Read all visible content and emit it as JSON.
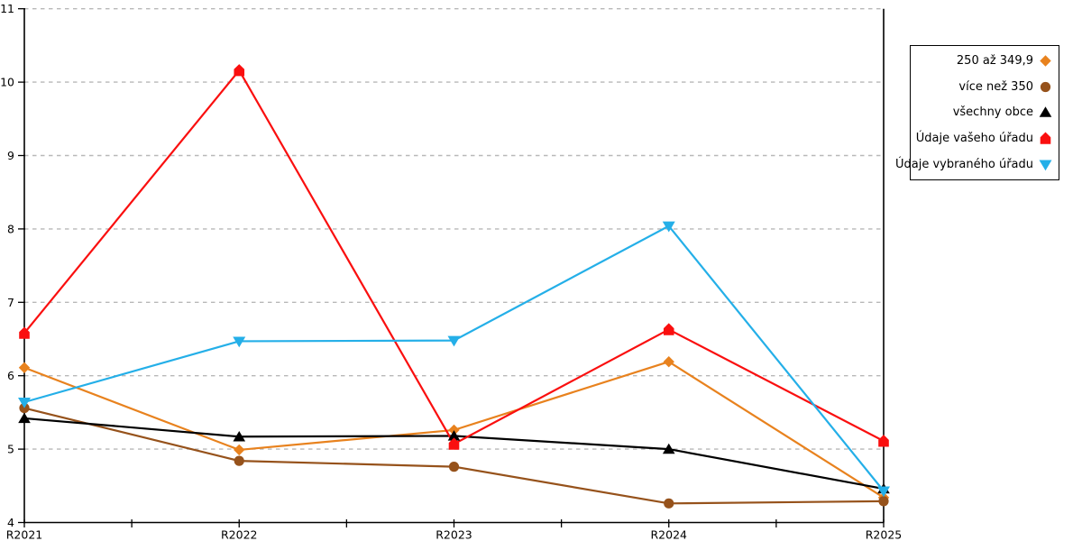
{
  "chart_data": {
    "type": "line",
    "title": "",
    "xlabel": "",
    "ylabel": "",
    "categories": [
      "R2021",
      "R2022",
      "R2023",
      "R2024",
      "R2025"
    ],
    "yticks": [
      4,
      5,
      6,
      7,
      8,
      9,
      10,
      11
    ],
    "ylim": [
      4,
      11
    ],
    "grid": "horizontal-dashed",
    "legend_position": "right-outside",
    "series": [
      {
        "name": "250 až 349,9",
        "color": "#E8821E",
        "marker": "diamond",
        "values": [
          6.11,
          4.99,
          5.26,
          6.19,
          4.34
        ]
      },
      {
        "name": "více než 350",
        "color": "#96521B",
        "marker": "circle",
        "values": [
          5.56,
          4.84,
          4.76,
          4.26,
          4.29
        ]
      },
      {
        "name": "všechny obce",
        "color": "#000000",
        "marker": "triangle-up",
        "values": [
          5.42,
          5.17,
          5.18,
          5.0,
          4.46
        ]
      },
      {
        "name": "Údaje vašeho úřadu",
        "color": "#FA0F0F",
        "marker": "pentagon",
        "values": [
          6.58,
          10.16,
          5.07,
          6.63,
          5.11
        ]
      },
      {
        "name": "Údaje vybraného úřadu",
        "color": "#24AFE8",
        "marker": "triangle-down",
        "values": [
          5.64,
          6.47,
          6.48,
          8.04,
          4.43
        ]
      }
    ]
  },
  "colors": {
    "background": "#ffffff",
    "axis": "#000000",
    "grid": "#b8b8b8",
    "legend_border": "#000000",
    "text": "#000000"
  }
}
